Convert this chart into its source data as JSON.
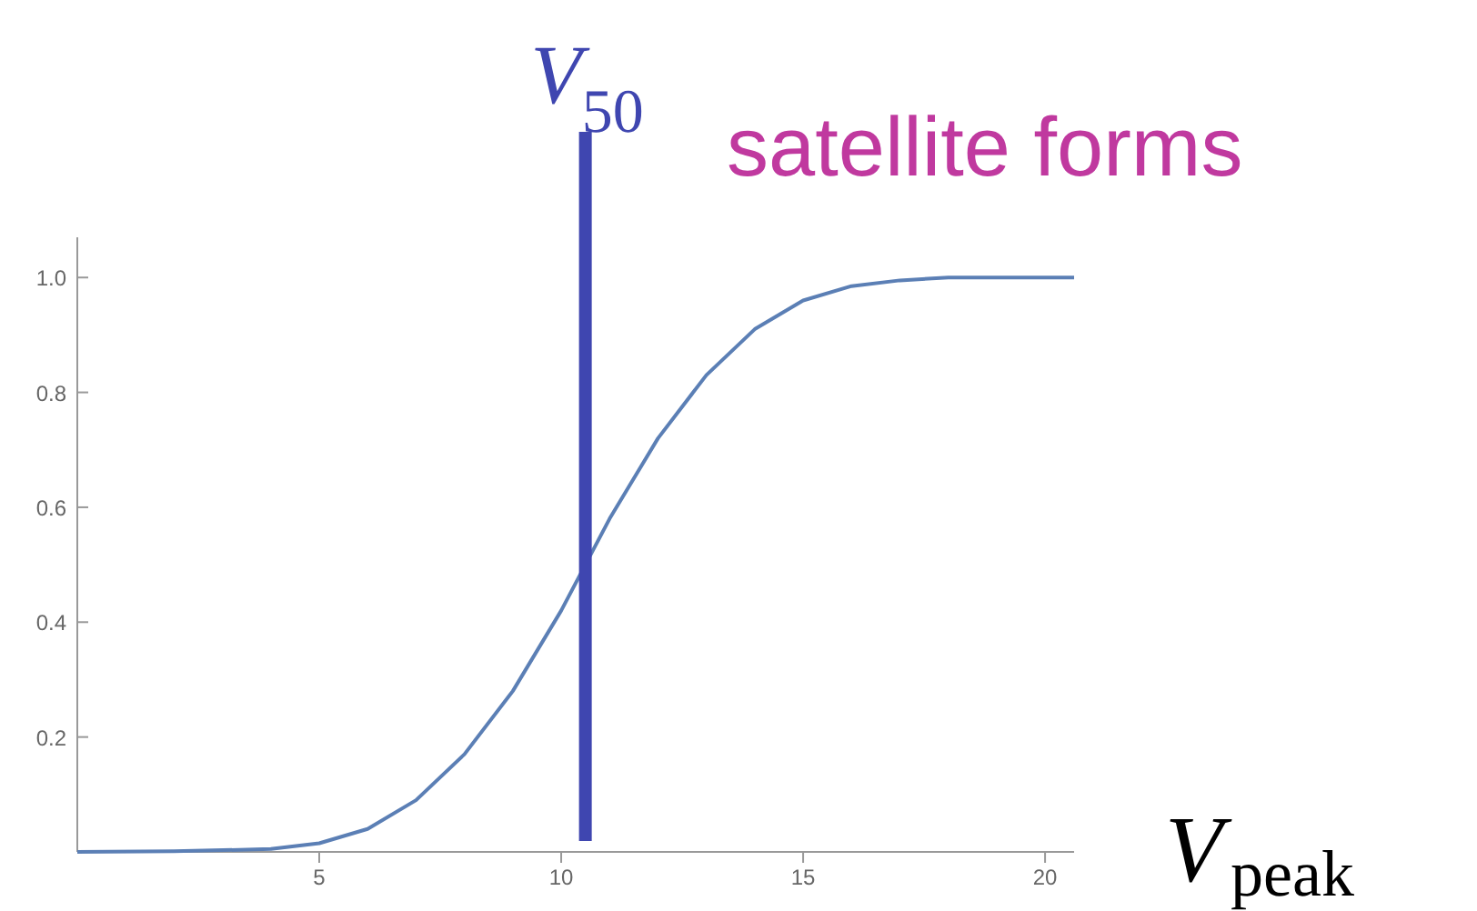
{
  "chart_data": {
    "type": "line",
    "xlabel": "V$_{peak}$",
    "annotations": [
      "satellite forms"
    ],
    "x": [
      0,
      2,
      4,
      5,
      6,
      7,
      8,
      9,
      10,
      10.5,
      11,
      12,
      13,
      14,
      15,
      16,
      17,
      18,
      20.6
    ],
    "series": [
      {
        "color": "#5b7fb5",
        "values": [
          0,
          0.001,
          0.005,
          0.015,
          0.04,
          0.09,
          0.17,
          0.28,
          0.42,
          0.5,
          0.58,
          0.72,
          0.83,
          0.91,
          0.96,
          0.985,
          0.995,
          1.0,
          1.0
        ]
      }
    ],
    "xlim": [
      0,
      20.6
    ],
    "ylim": [
      0,
      1.07
    ],
    "xticks": [
      5,
      10,
      15,
      20
    ],
    "yticks": [
      0.2,
      0.4,
      0.6,
      0.8,
      {
        "value": 1.0,
        "label": "1.0"
      }
    ],
    "ref_lines": [
      {
        "axis": "x",
        "value": 10.5,
        "label": "V$_{50}$",
        "color": "#3f46b0"
      }
    ],
    "grid": false
  }
}
